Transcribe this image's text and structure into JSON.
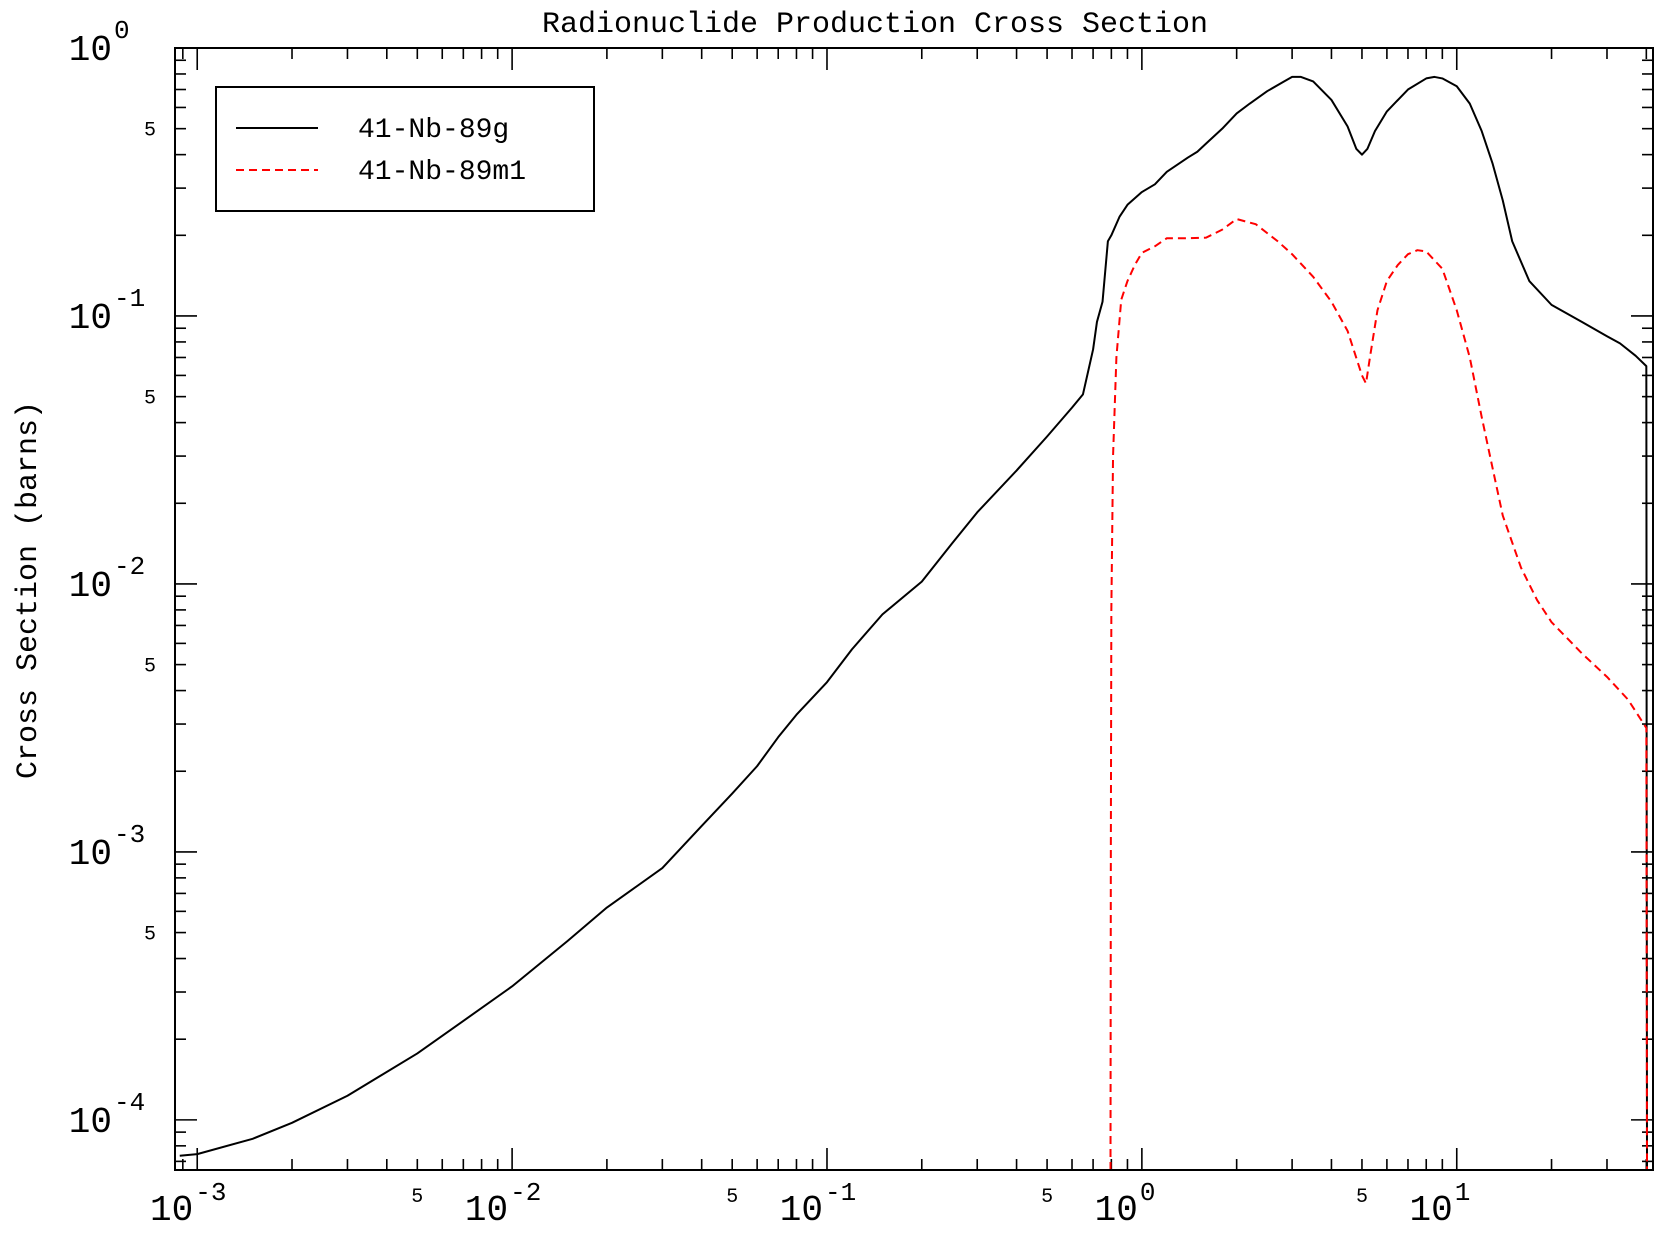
{
  "chart_data": {
    "type": "line",
    "title": "Radionuclide Production Cross Section",
    "xlabel": "",
    "ylabel": "Cross Section (barns)",
    "x_scale": "log",
    "y_scale": "log",
    "xlim": [
      0.00085,
      42
    ],
    "ylim": [
      6.5e-05,
      1.0
    ],
    "grid": false,
    "legend_position": "top-left",
    "x_major_ticks": [
      {
        "value": 0.001,
        "base": "10",
        "exp": "-3"
      },
      {
        "value": 0.01,
        "base": "10",
        "exp": "-2"
      },
      {
        "value": 0.1,
        "base": "10",
        "exp": "-1"
      },
      {
        "value": 1,
        "base": "10",
        "exp": "0"
      },
      {
        "value": 10,
        "base": "10",
        "exp": "1"
      }
    ],
    "x_minor_labels": [
      {
        "value": 0.005,
        "label": "5"
      },
      {
        "value": 0.05,
        "label": "5"
      },
      {
        "value": 0.5,
        "label": "5"
      },
      {
        "value": 5,
        "label": "5"
      }
    ],
    "y_major_ticks": [
      {
        "value": 1,
        "base": "10",
        "exp": "0"
      },
      {
        "value": 0.1,
        "base": "10",
        "exp": "-1"
      },
      {
        "value": 0.01,
        "base": "10",
        "exp": "-2"
      },
      {
        "value": 0.001,
        "base": "10",
        "exp": "-3"
      },
      {
        "value": 0.0001,
        "base": "10",
        "exp": "-4"
      }
    ],
    "y_minor_labels": [
      {
        "value": 0.5,
        "label": "5"
      },
      {
        "value": 0.05,
        "label": "5"
      },
      {
        "value": 0.005,
        "label": "5"
      },
      {
        "value": 0.0005,
        "label": "5"
      }
    ],
    "series": [
      {
        "name": "41-Nb-89g",
        "color": "#000000",
        "dash": "solid",
        "points": [
          [
            0.00088,
            7.35e-05
          ],
          [
            0.001,
            7.45e-05
          ],
          [
            0.0015,
            8.5e-05
          ],
          [
            0.002,
            9.75e-05
          ],
          [
            0.003,
            0.000123
          ],
          [
            0.005,
            0.000177
          ],
          [
            0.007,
            0.000234
          ],
          [
            0.01,
            0.000315
          ],
          [
            0.015,
            0.000465
          ],
          [
            0.02,
            0.00062
          ],
          [
            0.03,
            0.00087
          ],
          [
            0.04,
            0.00125
          ],
          [
            0.05,
            0.00165
          ],
          [
            0.06,
            0.00209
          ],
          [
            0.07,
            0.00268
          ],
          [
            0.08,
            0.00325
          ],
          [
            0.1,
            0.0043
          ],
          [
            0.12,
            0.0057
          ],
          [
            0.15,
            0.0077
          ],
          [
            0.2,
            0.0102
          ],
          [
            0.25,
            0.0142
          ],
          [
            0.3,
            0.0185
          ],
          [
            0.4,
            0.0265
          ],
          [
            0.5,
            0.0355
          ],
          [
            0.6,
            0.0455
          ],
          [
            0.65,
            0.051
          ],
          [
            0.7,
            0.075
          ],
          [
            0.72,
            0.095
          ],
          [
            0.75,
            0.113
          ],
          [
            0.78,
            0.19
          ],
          [
            0.8,
            0.2
          ],
          [
            0.85,
            0.235
          ],
          [
            0.9,
            0.26
          ],
          [
            1.0,
            0.29
          ],
          [
            1.1,
            0.31
          ],
          [
            1.2,
            0.345
          ],
          [
            1.4,
            0.39
          ],
          [
            1.5,
            0.41
          ],
          [
            1.6,
            0.44
          ],
          [
            1.8,
            0.5
          ],
          [
            2.0,
            0.57
          ],
          [
            2.2,
            0.62
          ],
          [
            2.5,
            0.69
          ],
          [
            2.8,
            0.745
          ],
          [
            3.0,
            0.78
          ],
          [
            3.2,
            0.78
          ],
          [
            3.5,
            0.75
          ],
          [
            4.0,
            0.64
          ],
          [
            4.5,
            0.51
          ],
          [
            4.8,
            0.42
          ],
          [
            5.0,
            0.4
          ],
          [
            5.2,
            0.42
          ],
          [
            5.5,
            0.49
          ],
          [
            6.0,
            0.58
          ],
          [
            7.0,
            0.7
          ],
          [
            8.0,
            0.77
          ],
          [
            8.5,
            0.78
          ],
          [
            9.0,
            0.77
          ],
          [
            10.0,
            0.72
          ],
          [
            11.0,
            0.62
          ],
          [
            12.0,
            0.49
          ],
          [
            13.0,
            0.37
          ],
          [
            14.0,
            0.27
          ],
          [
            15.0,
            0.19
          ],
          [
            17.0,
            0.135
          ],
          [
            20.0,
            0.11
          ],
          [
            25.0,
            0.095
          ],
          [
            30.0,
            0.084
          ],
          [
            33.0,
            0.079
          ],
          [
            37.0,
            0.071
          ],
          [
            40.0,
            0.065
          ],
          [
            40.2,
            6.5e-05
          ]
        ]
      },
      {
        "name": "41-Nb-89m1",
        "color": "#ff0000",
        "dash": "8,5",
        "points": [
          [
            0.795,
            6.5e-05
          ],
          [
            0.797,
            0.001
          ],
          [
            0.8,
            0.008
          ],
          [
            0.81,
            0.03
          ],
          [
            0.83,
            0.07
          ],
          [
            0.86,
            0.115
          ],
          [
            0.9,
            0.135
          ],
          [
            0.95,
            0.155
          ],
          [
            1.0,
            0.172
          ],
          [
            1.1,
            0.182
          ],
          [
            1.2,
            0.195
          ],
          [
            1.4,
            0.195
          ],
          [
            1.6,
            0.196
          ],
          [
            1.8,
            0.21
          ],
          [
            2.0,
            0.23
          ],
          [
            2.3,
            0.22
          ],
          [
            2.7,
            0.19
          ],
          [
            3.0,
            0.17
          ],
          [
            3.5,
            0.14
          ],
          [
            4.0,
            0.113
          ],
          [
            4.5,
            0.088
          ],
          [
            5.0,
            0.06
          ],
          [
            5.15,
            0.056
          ],
          [
            5.3,
            0.07
          ],
          [
            5.6,
            0.105
          ],
          [
            6.0,
            0.135
          ],
          [
            6.5,
            0.155
          ],
          [
            7.0,
            0.17
          ],
          [
            7.5,
            0.176
          ],
          [
            8.0,
            0.174
          ],
          [
            9.0,
            0.15
          ],
          [
            10.0,
            0.105
          ],
          [
            11.0,
            0.07
          ],
          [
            12.0,
            0.042
          ],
          [
            13.0,
            0.027
          ],
          [
            14.0,
            0.018
          ],
          [
            16.0,
            0.0115
          ],
          [
            18.0,
            0.0087
          ],
          [
            20.0,
            0.0072
          ],
          [
            25.0,
            0.0055
          ],
          [
            30.0,
            0.0045
          ],
          [
            35.0,
            0.0037
          ],
          [
            40.0,
            0.0029
          ],
          [
            40.2,
            6.5e-05
          ]
        ]
      }
    ]
  }
}
